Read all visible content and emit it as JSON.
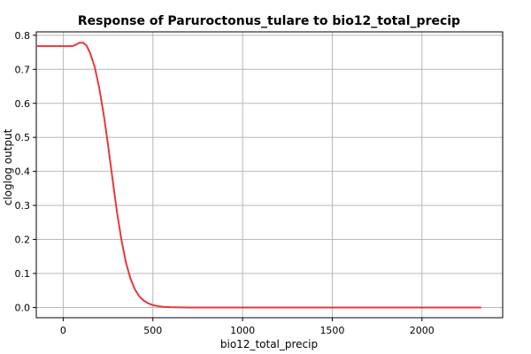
{
  "chart_data": {
    "type": "line",
    "title": "Response of Paruroctonus_tulare to bio12_total_precip",
    "xlabel": "bio12_total_precip",
    "ylabel": "cloglog output",
    "xlim": [
      -150,
      2450
    ],
    "ylim": [
      -0.03,
      0.81
    ],
    "xticks": [
      0,
      500,
      1000,
      1500,
      2000
    ],
    "yticks": [
      0.0,
      0.1,
      0.2,
      0.3,
      0.4,
      0.5,
      0.6,
      0.7,
      0.8
    ],
    "ytick_labels": [
      "0.0",
      "0.1",
      "0.2",
      "0.3",
      "0.4",
      "0.5",
      "0.6",
      "0.7",
      "0.8"
    ],
    "grid": true,
    "series_color": "#e8383a",
    "series": [
      {
        "x": [
          -150,
          0,
          50,
          70,
          90,
          110,
          130,
          150,
          175,
          200,
          225,
          250,
          275,
          300,
          325,
          350,
          375,
          400,
          425,
          450,
          475,
          500,
          530,
          560,
          600,
          700,
          1000,
          1500,
          2000,
          2330
        ],
        "y": [
          0.768,
          0.768,
          0.768,
          0.772,
          0.778,
          0.778,
          0.77,
          0.748,
          0.708,
          0.648,
          0.57,
          0.478,
          0.378,
          0.28,
          0.198,
          0.132,
          0.085,
          0.053,
          0.032,
          0.02,
          0.012,
          0.007,
          0.004,
          0.002,
          0.001,
          0.0,
          0.0,
          0.0,
          0.0,
          0.0
        ]
      }
    ]
  }
}
